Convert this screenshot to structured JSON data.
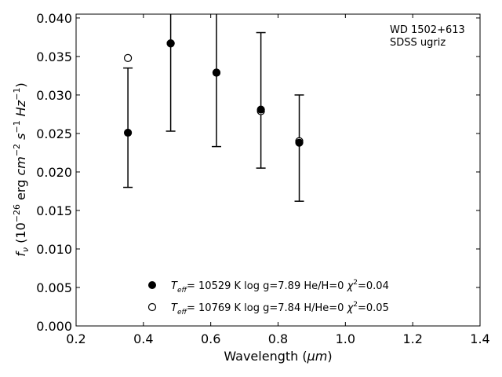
{
  "chart_data": {
    "type": "scatter",
    "annotation": [
      "WD 1502+613",
      "SDSS ugriz"
    ],
    "xlabel": "Wavelength (μm)",
    "ylabel": "f_ν (10^−26 erg cm^−2 s^−1 Hz^−1)",
    "xlim": [
      0.2,
      1.4
    ],
    "ylim": [
      0.0,
      0.0405
    ],
    "xticks": [
      "0.2",
      "0.4",
      "0.6",
      "0.8",
      "1.0",
      "1.2",
      "1.4"
    ],
    "yticks": [
      "0.000",
      "0.005",
      "0.010",
      "0.015",
      "0.020",
      "0.025",
      "0.030",
      "0.035",
      "0.040"
    ],
    "grid": false,
    "legend_position": "bottom-center",
    "series": [
      {
        "marker": "filled-circle",
        "legend": "T_eff= 10529 K  log g=7.89  He/H=0  χ²=0.04",
        "x": [
          0.354,
          0.481,
          0.617,
          0.749,
          0.863
        ],
        "y": [
          0.0251,
          0.0367,
          0.0329,
          0.0281,
          0.0238
        ]
      },
      {
        "marker": "open-circle",
        "legend": "T_eff= 10769 K  log g=7.84  H/He=0  χ²=0.05",
        "x": [
          0.354,
          0.481,
          0.617,
          0.749,
          0.863
        ],
        "y": [
          0.0348,
          0.0367,
          0.0329,
          0.0279,
          0.024
        ]
      }
    ],
    "errorbars": {
      "x": [
        0.354,
        0.481,
        0.617,
        0.749,
        0.863
      ],
      "low": [
        0.018,
        0.0253,
        0.0233,
        0.0205,
        0.0162
      ],
      "high": [
        0.0335,
        0.0405,
        0.0405,
        0.0381,
        0.03
      ]
    },
    "colors": {
      "axes": "#000000",
      "marker": "#000000",
      "background": "#ffffff"
    }
  }
}
